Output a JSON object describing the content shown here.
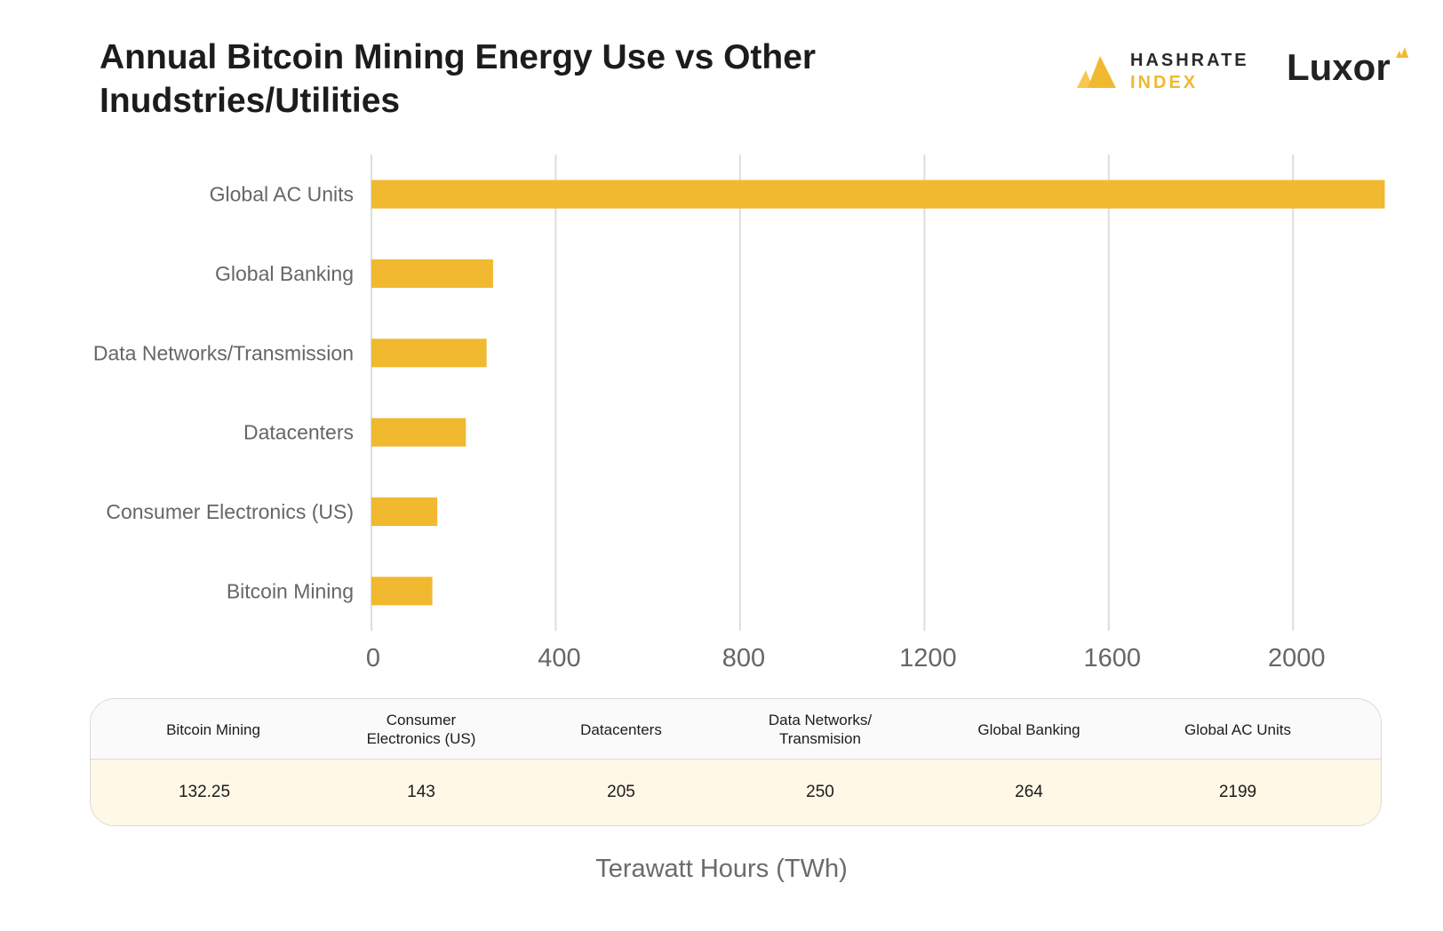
{
  "header": {
    "title_line1": "Annual Bitcoin Mining Energy Use vs Other",
    "title_line2": "Inudstries/Utilities"
  },
  "logos": {
    "hashrate_word1": "HASHRATE",
    "hashrate_word2": "INDEX",
    "luxor": "Luxor"
  },
  "colors": {
    "bar": "#f0b92f",
    "grid": "#dddddd",
    "label": "#666666",
    "table_body": "#fff8e6"
  },
  "chart_data": {
    "type": "bar",
    "orientation": "horizontal",
    "categories": [
      "Global AC Units",
      "Global Banking",
      "Data Networks/Transmission",
      "Datacenters",
      "Consumer Electronics (US)",
      "Bitcoin Mining"
    ],
    "values": [
      2199,
      264,
      250,
      205,
      143,
      132.25
    ],
    "xlim": [
      0,
      2200
    ],
    "xticks": [
      0,
      400,
      800,
      1200,
      1600,
      2000
    ],
    "xlabel": "Terawatt Hours (TWh)",
    "grid": "vertical",
    "legend": "none"
  },
  "table": {
    "headers": [
      [
        "Bitcoin Mining"
      ],
      [
        "Consumer",
        "Electronics (US)"
      ],
      [
        "Datacenters"
      ],
      [
        "Data Networks/",
        "Transmision"
      ],
      [
        "Global Banking"
      ],
      [
        "Global AC Units"
      ]
    ],
    "values": [
      "132.25",
      "143",
      "205",
      "250",
      "264",
      "2199"
    ]
  }
}
